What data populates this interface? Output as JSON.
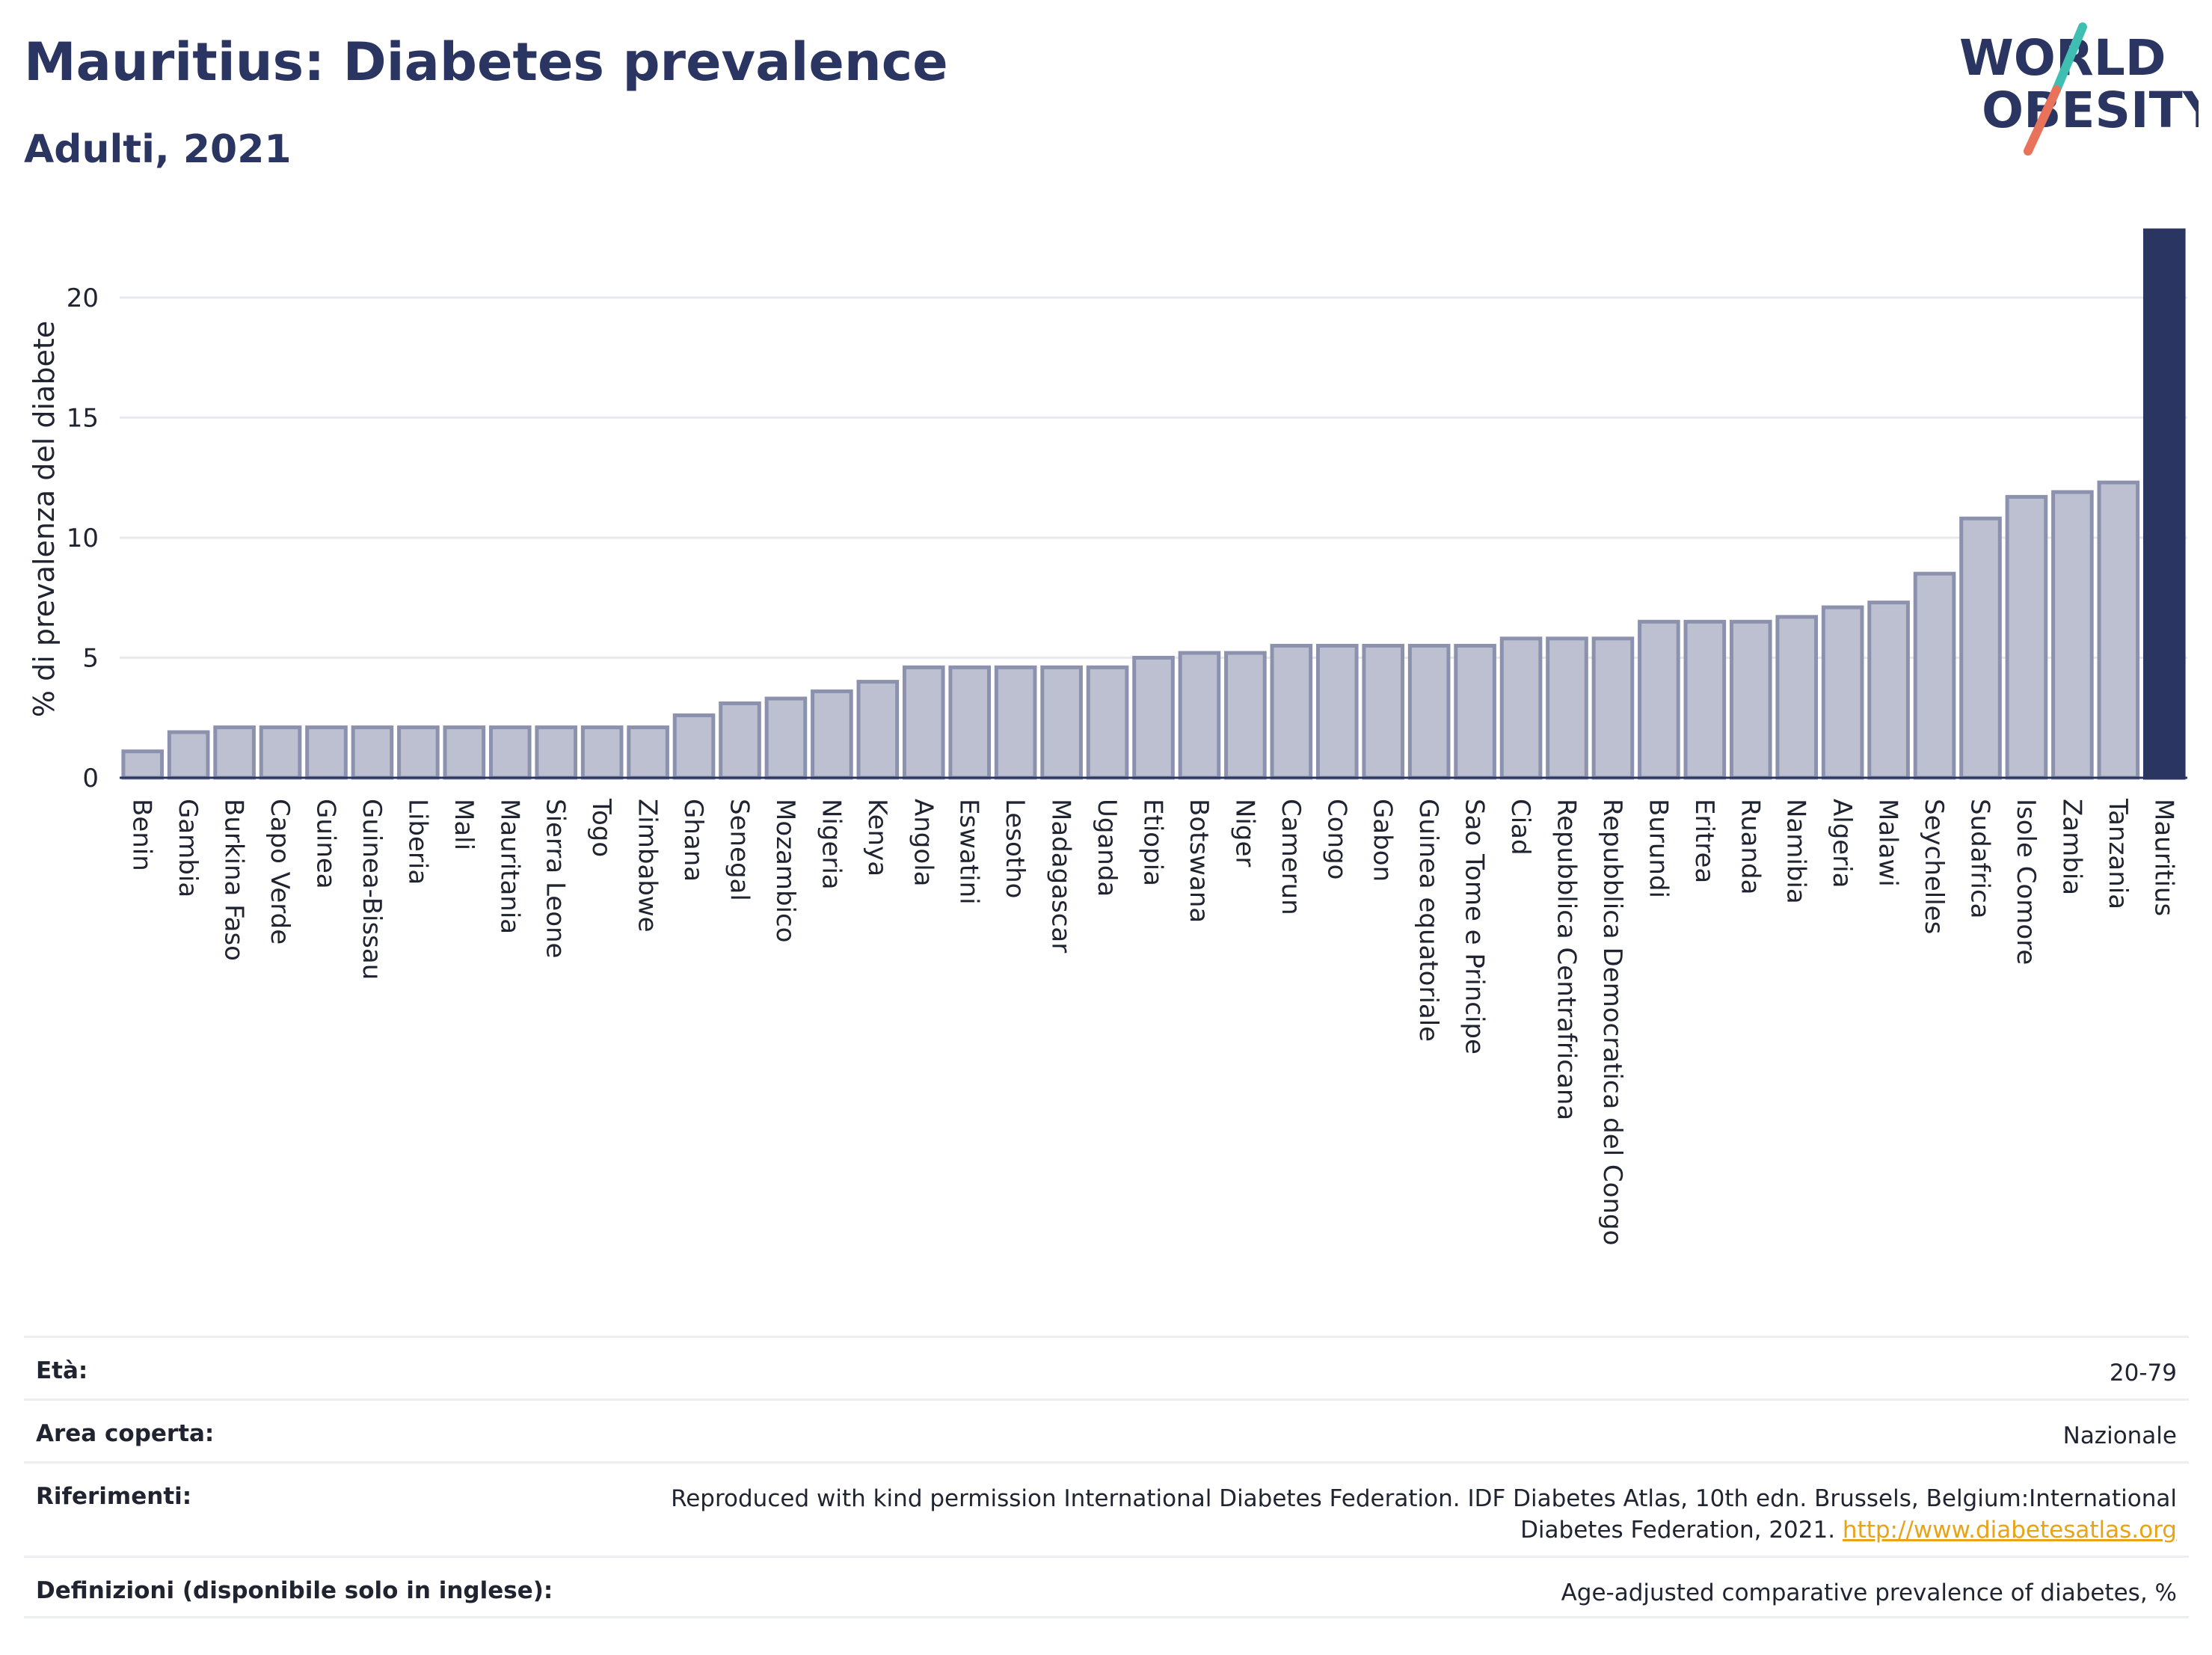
{
  "header": {
    "title": "Mauritius: Diabetes prevalence",
    "subtitle": "Adulti, 2021"
  },
  "logo": {
    "line1": "WORLD",
    "line2": "OBESITY",
    "accent_teal": "#3fbfb2",
    "accent_coral": "#e8735a",
    "text_color": "#2b3561"
  },
  "colors": {
    "bar_default": "#bcc0d0",
    "bar_default_border": "#8c92ad",
    "bar_highlight": "#2b3561",
    "grid": "#e8e9ee"
  },
  "chart_data": {
    "type": "bar",
    "title": "Mauritius: Diabetes prevalence",
    "subtitle": "Adulti, 2021",
    "xlabel": "",
    "ylabel": "% di prevalenza del diabete",
    "ylim": [
      0,
      22.8
    ],
    "yticks": [
      0,
      5,
      10,
      15,
      20
    ],
    "grid": true,
    "highlight": "Mauritius",
    "categories": [
      "Benin",
      "Gambia",
      "Burkina Faso",
      "Capo Verde",
      "Guinea",
      "Guinea-Bissau",
      "Liberia",
      "Mali",
      "Mauritania",
      "Sierra Leone",
      "Togo",
      "Zimbabwe",
      "Ghana",
      "Senegal",
      "Mozambico",
      "Nigeria",
      "Kenya",
      "Angola",
      "Eswatini",
      "Lesotho",
      "Madagascar",
      "Uganda",
      "Etiopia",
      "Botswana",
      "Niger",
      "Camerun",
      "Congo",
      "Gabon",
      "Guinea equatoriale",
      "Sao Tome e Principe",
      "Ciad",
      "Repubblica Centrafricana",
      "Repubblica Democratica del Congo",
      "Burundi",
      "Eritrea",
      "Ruanda",
      "Namibia",
      "Algeria",
      "Malawi",
      "Seychelles",
      "Sudafrica",
      "Isole Comore",
      "Zambia",
      "Tanzania",
      "Mauritius"
    ],
    "values": [
      1.1,
      1.9,
      2.1,
      2.1,
      2.1,
      2.1,
      2.1,
      2.1,
      2.1,
      2.1,
      2.1,
      2.1,
      2.6,
      3.1,
      3.3,
      3.6,
      4.0,
      4.6,
      4.6,
      4.6,
      4.6,
      4.6,
      5.0,
      5.2,
      5.2,
      5.5,
      5.5,
      5.5,
      5.5,
      5.5,
      5.8,
      5.8,
      5.8,
      6.5,
      6.5,
      6.5,
      6.7,
      7.1,
      7.3,
      8.5,
      10.8,
      11.7,
      11.9,
      12.3,
      22.8
    ]
  },
  "info": {
    "rows": [
      {
        "label": "Età:",
        "value": "20-79"
      },
      {
        "label": "Area coperta:",
        "value": "Nazionale"
      },
      {
        "label": "Riferimenti:",
        "value": "Reproduced with kind permission International Diabetes Federation.  IDF Diabetes Atlas, 10th edn. Brussels, Belgium:International Diabetes Federation, 2021.",
        "link": "http://www.diabetesatlas.org"
      },
      {
        "label": "Definizioni (disponibile solo in inglese):",
        "value": "Age-adjusted comparative prevalence of diabetes, %"
      }
    ]
  }
}
